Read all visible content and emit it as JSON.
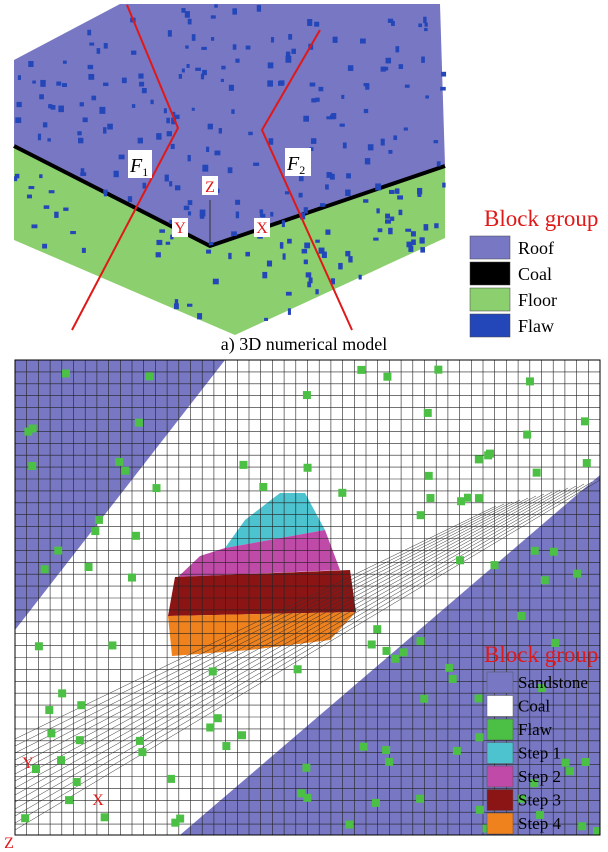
{
  "top": {
    "faults": [
      {
        "letter": "F",
        "sub": "1"
      },
      {
        "letter": "F",
        "sub": "2"
      }
    ],
    "axes": [
      "Z",
      "Y",
      "X"
    ],
    "legend": {
      "title": "Block group",
      "items": [
        "Roof",
        "Coal",
        "Floor",
        "Flaw"
      ]
    },
    "caption": "a) 3D numerical model"
  },
  "bottom": {
    "axes": [
      "Y",
      "X",
      "Z"
    ],
    "legend": {
      "title": "Block group",
      "items": [
        "Sandstone",
        "Coal",
        "Flaw",
        "Step 1",
        "Step 2",
        "Step 3",
        "Step 4"
      ]
    }
  }
}
